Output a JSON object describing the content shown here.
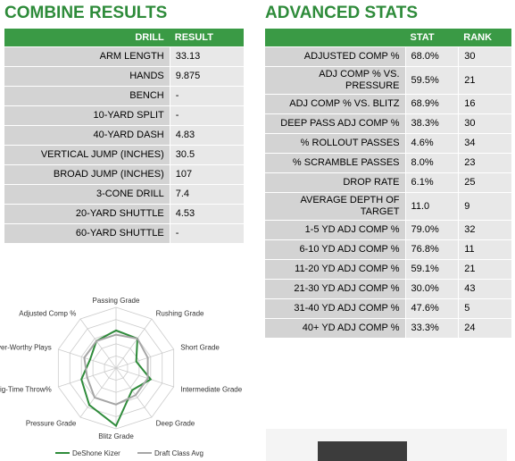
{
  "combine": {
    "title": "COMBINE RESULTS",
    "headers": [
      "DRILL",
      "RESULT"
    ],
    "rows": [
      [
        "ARM LENGTH",
        "33.13"
      ],
      [
        "HANDS",
        "9.875"
      ],
      [
        "BENCH",
        "-"
      ],
      [
        "10-YARD SPLIT",
        "-"
      ],
      [
        "40-YARD DASH",
        "4.83"
      ],
      [
        "VERTICAL JUMP (INCHES)",
        "30.5"
      ],
      [
        "BROAD JUMP (INCHES)",
        "107"
      ],
      [
        "3-CONE DRILL",
        "7.4"
      ],
      [
        "20-YARD SHUTTLE",
        "4.53"
      ],
      [
        "60-YARD SHUTTLE",
        "-"
      ]
    ]
  },
  "advanced": {
    "title": "ADVANCED STATS",
    "headers": [
      "",
      "STAT",
      "RANK"
    ],
    "rows": [
      [
        "ADJUSTED COMP %",
        "68.0%",
        "30"
      ],
      [
        "ADJ COMP % VS. PRESSURE",
        "59.5%",
        "21"
      ],
      [
        "ADJ COMP % VS. BLITZ",
        "68.9%",
        "16"
      ],
      [
        "DEEP PASS ADJ COMP %",
        "38.3%",
        "30"
      ],
      [
        "% ROLLOUT PASSES",
        "4.6%",
        "34"
      ],
      [
        "% SCRAMBLE PASSES",
        "8.0%",
        "23"
      ],
      [
        "DROP RATE",
        "6.1%",
        "25"
      ],
      [
        "AVERAGE DEPTH OF TARGET",
        "11.0",
        "9"
      ],
      [
        "1-5 YD ADJ COMP %",
        "79.0%",
        "32"
      ],
      [
        "6-10 YD ADJ COMP %",
        "76.8%",
        "11"
      ],
      [
        "11-20 YD ADJ COMP %",
        "59.1%",
        "21"
      ],
      [
        "21-30 YD ADJ COMP %",
        "30.0%",
        "43"
      ],
      [
        "31-40 YD ADJ COMP %",
        "47.6%",
        "5"
      ],
      [
        "40+ YD ADJ COMP %",
        "33.3%",
        "24"
      ]
    ]
  },
  "chart_data": {
    "type": "radar",
    "rlim": [
      0,
      100
    ],
    "categories": [
      "Passing Grade",
      "Rushing Grade",
      "Short Grade",
      "Intermediate Grade",
      "Deep Grade",
      "Blitz Grade",
      "Pressure Grade",
      "Big-Time Throw%",
      "Avoids Turnover-Worthy Plays",
      "Adjusted Comp %"
    ],
    "series": [
      {
        "name": "DeShone Kizer",
        "color": "#2e8b3a",
        "values": [
          62,
          60,
          35,
          60,
          45,
          95,
          75,
          60,
          45,
          55
        ]
      },
      {
        "name": "Draft Class Avg",
        "color": "#a6a6a6",
        "values": [
          55,
          60,
          55,
          55,
          55,
          60,
          60,
          50,
          55,
          55
        ]
      }
    ]
  }
}
